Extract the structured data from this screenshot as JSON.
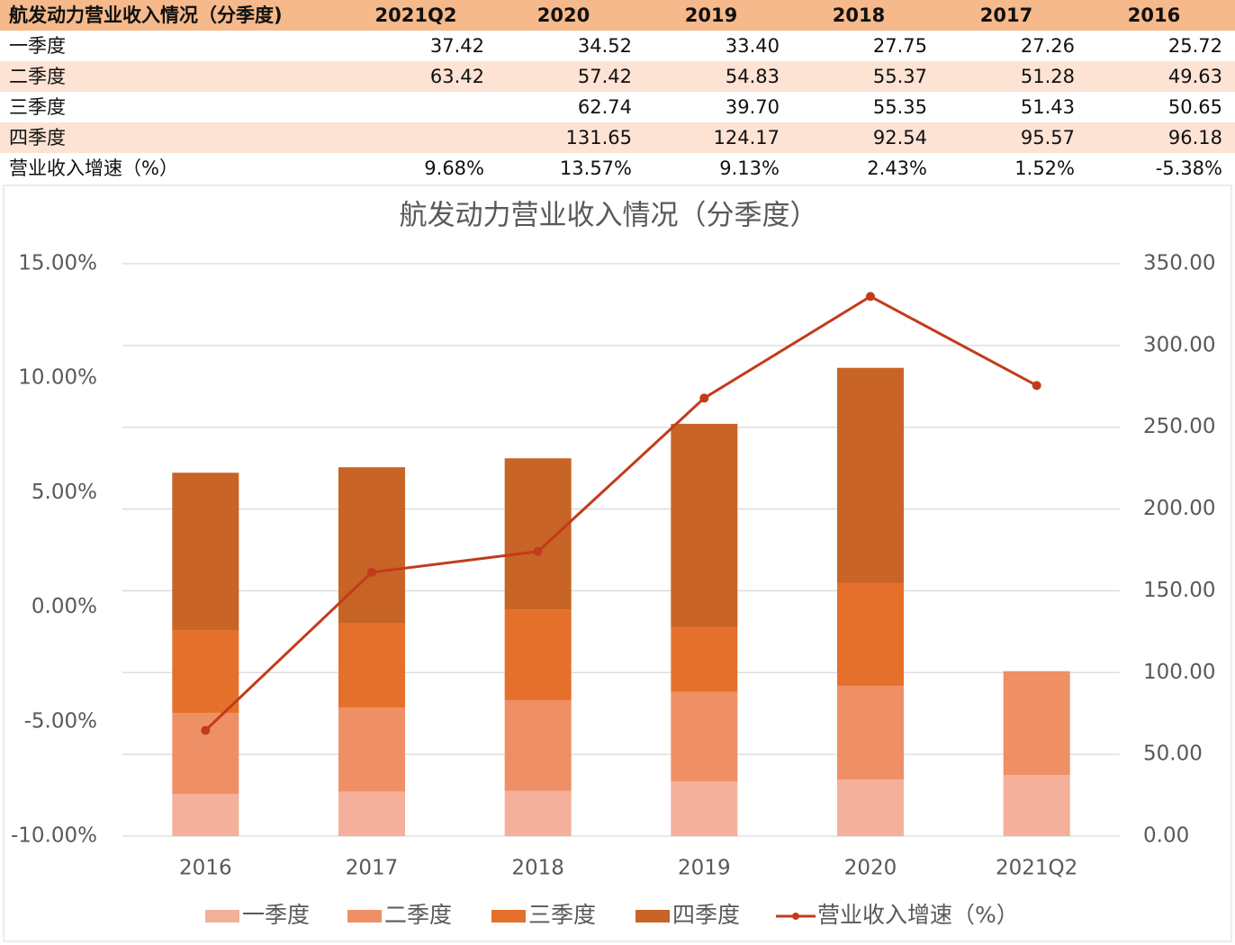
{
  "table": {
    "header": [
      "航发动力营业收入情况（分季度)",
      "2021Q2",
      "2020",
      "2019",
      "2018",
      "2017",
      "2016"
    ],
    "rows": [
      [
        "一季度",
        "37.42",
        "34.52",
        "33.40",
        "27.75",
        "27.26",
        "25.72"
      ],
      [
        "二季度",
        "63.42",
        "57.42",
        "54.83",
        "55.37",
        "51.28",
        "49.63"
      ],
      [
        "三季度",
        null,
        "62.74",
        "39.70",
        "55.35",
        "51.43",
        "50.65"
      ],
      [
        "四季度",
        null,
        "131.65",
        "124.17",
        "92.54",
        "95.57",
        "96.18"
      ],
      [
        "营业收入增速（%）",
        "9.68%",
        "13.57%",
        "9.13%",
        "2.43%",
        "1.52%",
        "-5.38%"
      ]
    ]
  },
  "chart_data": {
    "type": "bar",
    "stacked": true,
    "title": "航发动力营业收入情况（分季度）",
    "categories": [
      "2016",
      "2017",
      "2018",
      "2019",
      "2020",
      "2021Q2"
    ],
    "series": [
      {
        "name": "一季度",
        "color": "#f4b09a",
        "axis": "y2",
        "values": [
          25.72,
          27.26,
          27.75,
          33.4,
          34.52,
          37.42
        ]
      },
      {
        "name": "二季度",
        "color": "#ee8f66",
        "axis": "y2",
        "values": [
          49.63,
          51.28,
          55.37,
          54.83,
          57.42,
          63.42
        ]
      },
      {
        "name": "三季度",
        "color": "#e5702b",
        "axis": "y2",
        "values": [
          50.65,
          51.43,
          55.35,
          39.7,
          62.74,
          null
        ]
      },
      {
        "name": "四季度",
        "color": "#c76426",
        "axis": "y2",
        "values": [
          96.18,
          95.57,
          92.54,
          124.17,
          131.65,
          null
        ]
      },
      {
        "name": "营业收入增速（%）",
        "type": "line",
        "color": "#c23b1c",
        "values": [
          -5.38,
          1.52,
          2.43,
          9.13,
          13.57,
          9.68
        ]
      }
    ],
    "ylim": [
      -10,
      15
    ],
    "yticks": [
      {
        "value": -10,
        "label": "-10.00%"
      },
      {
        "value": -5,
        "label": "-5.00%"
      },
      {
        "value": 0,
        "label": "0.00%"
      },
      {
        "value": 5,
        "label": "5.00%"
      },
      {
        "value": 10,
        "label": "10.00%"
      },
      {
        "value": 15,
        "label": "15.00%"
      }
    ],
    "y2lim": [
      0,
      350
    ],
    "y2ticks": [
      {
        "value": 0,
        "label": "0.00"
      },
      {
        "value": 50,
        "label": "50.00"
      },
      {
        "value": 100,
        "label": "100.00"
      },
      {
        "value": 150,
        "label": "150.00"
      },
      {
        "value": 200,
        "label": "200.00"
      },
      {
        "value": 250,
        "label": "250.00"
      },
      {
        "value": 300,
        "label": "300.00"
      },
      {
        "value": 350,
        "label": "350.00"
      }
    ],
    "grid": true,
    "legend": "bottom"
  }
}
